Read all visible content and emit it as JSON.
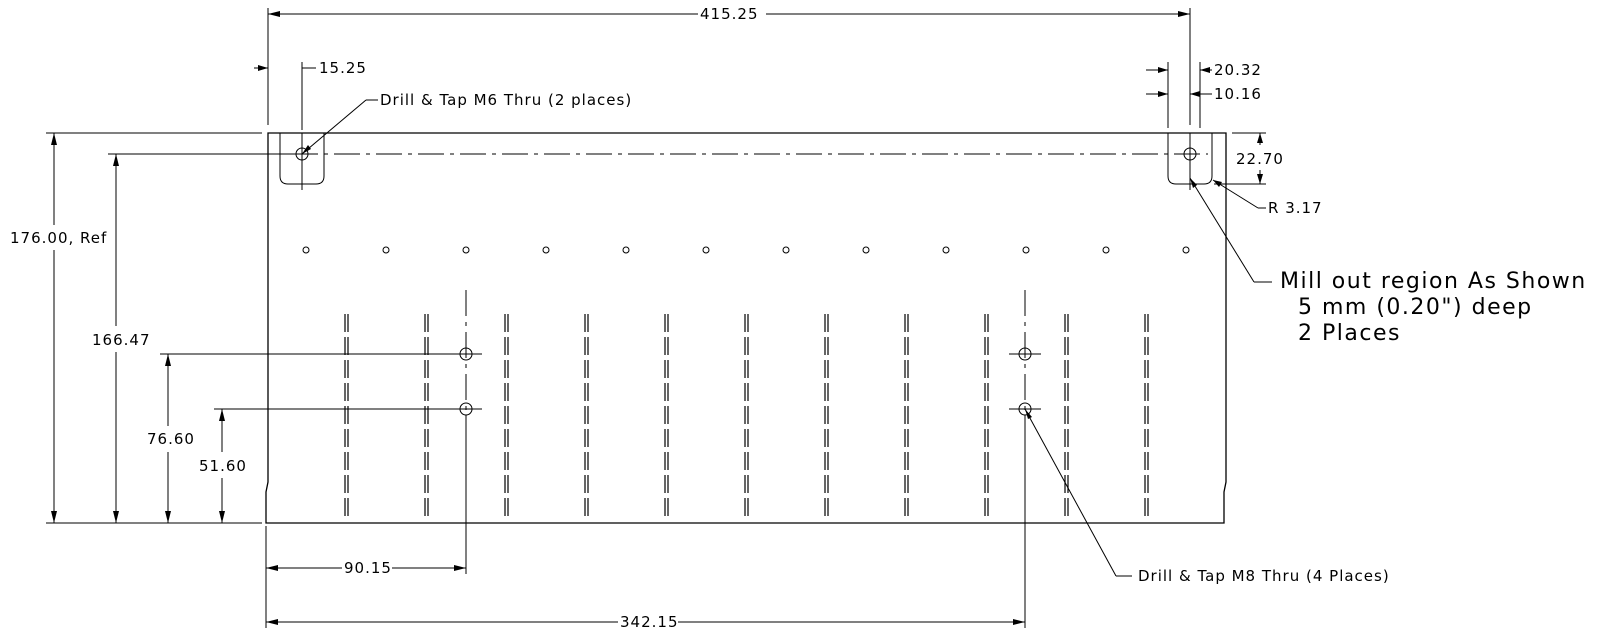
{
  "dimensions": {
    "overall_width": "415.25",
    "hole_offset_left": "15.25",
    "mill_offset_right_outer": "20.32",
    "mill_offset_right_inner": "10.16",
    "mill_height": "22.70",
    "mill_radius": "R 3.17",
    "overall_height": "176.00, Ref",
    "hole_row_height": "166.47",
    "upper_hole_height": "76.60",
    "lower_hole_height": "51.60",
    "left_hole_x": "90.15",
    "right_hole_x": "342.15"
  },
  "notes": {
    "m6_callout": "Drill & Tap M6 Thru (2 places)",
    "m8_callout": "Drill & Tap M8 Thru (4 Places)",
    "mill_line1": "Mill out region As Shown",
    "mill_line2": "5 mm (0.20\") deep",
    "mill_line3": "2 Places"
  }
}
